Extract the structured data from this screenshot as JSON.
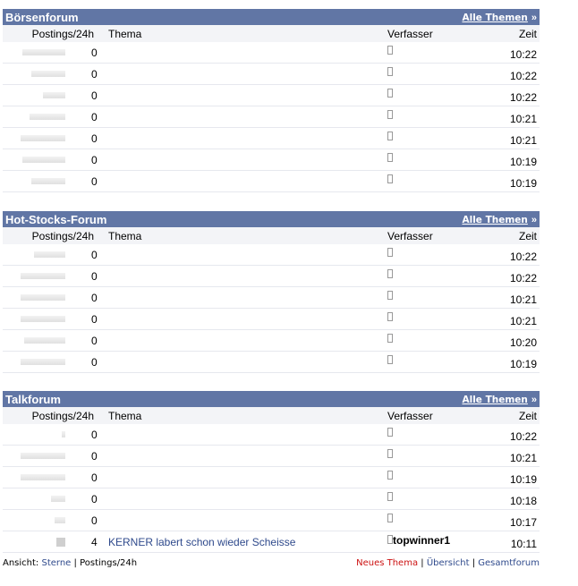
{
  "columns": {
    "postings": "Postings/24h",
    "thema": "Thema",
    "verfasser": "Verfasser",
    "zeit": "Zeit"
  },
  "alle_themen": "Alle Themen",
  "sections": [
    {
      "title": "Börsenforum",
      "rows": [
        {
          "activity": 48,
          "count": "0",
          "thema": "",
          "author": "",
          "time": "10:22"
        },
        {
          "activity": 38,
          "count": "0",
          "thema": "",
          "author": "",
          "time": "10:22"
        },
        {
          "activity": 25,
          "count": "0",
          "thema": "",
          "author": "",
          "time": "10:22"
        },
        {
          "activity": 40,
          "count": "0",
          "thema": "",
          "author": "",
          "time": "10:21"
        },
        {
          "activity": 50,
          "count": "0",
          "thema": "",
          "author": "",
          "time": "10:21"
        },
        {
          "activity": 48,
          "count": "0",
          "thema": "",
          "author": "",
          "time": "10:19"
        },
        {
          "activity": 38,
          "count": "0",
          "thema": "",
          "author": "",
          "time": "10:19"
        }
      ]
    },
    {
      "title": "Hot-Stocks-Forum",
      "rows": [
        {
          "activity": 35,
          "count": "0",
          "thema": "",
          "author": "",
          "time": "10:22"
        },
        {
          "activity": 50,
          "count": "0",
          "thema": "",
          "author": "",
          "time": "10:22"
        },
        {
          "activity": 50,
          "count": "0",
          "thema": "",
          "author": "",
          "time": "10:21"
        },
        {
          "activity": 50,
          "count": "0",
          "thema": "",
          "author": "",
          "time": "10:21"
        },
        {
          "activity": 46,
          "count": "0",
          "thema": "",
          "author": "",
          "time": "10:20"
        },
        {
          "activity": 50,
          "count": "0",
          "thema": "",
          "author": "",
          "time": "10:19"
        }
      ]
    },
    {
      "title": "Talkforum",
      "rows": [
        {
          "activity": 4,
          "count": "0",
          "thema": "",
          "author": "",
          "time": "10:22"
        },
        {
          "activity": 50,
          "count": "0",
          "thema": "",
          "author": "",
          "time": "10:21"
        },
        {
          "activity": 50,
          "count": "0",
          "thema": "",
          "author": "",
          "time": "10:19"
        },
        {
          "activity": 16,
          "count": "0",
          "thema": "",
          "author": "",
          "time": "10:18"
        },
        {
          "activity": 12,
          "count": "0",
          "thema": "",
          "author": "",
          "time": "10:17"
        },
        {
          "activity": "square",
          "count": "4",
          "thema": "KERNER labert schon wieder Scheisse",
          "author": "topwinner1",
          "time": "10:11"
        }
      ]
    }
  ],
  "footer": {
    "ansicht": "Ansicht:",
    "sterne": "Sterne",
    "sep": "|",
    "postings": "Postings/24h",
    "neues_thema": "Neues Thema",
    "uebersicht": "Übersicht",
    "gesamtforum": "Gesamtforum"
  }
}
